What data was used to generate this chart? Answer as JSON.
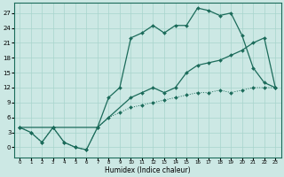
{
  "xlabel": "Humidex (Indice chaleur)",
  "background_color": "#cce8e4",
  "line_color": "#1b6b5a",
  "xlim": [
    -0.5,
    23.5
  ],
  "ylim": [
    -2,
    29
  ],
  "xticks": [
    0,
    1,
    2,
    3,
    4,
    5,
    6,
    7,
    8,
    9,
    10,
    11,
    12,
    13,
    14,
    15,
    16,
    17,
    18,
    19,
    20,
    21,
    22,
    23
  ],
  "yticks": [
    0,
    3,
    6,
    9,
    12,
    15,
    18,
    21,
    24,
    27
  ],
  "grid_color": "#a8d4cc",
  "line1_x": [
    0,
    1,
    2,
    3,
    4,
    5,
    6,
    7,
    8,
    9,
    10,
    11,
    12,
    13,
    14,
    15,
    16,
    17,
    18,
    19,
    20,
    21,
    22,
    23
  ],
  "line1_y": [
    4,
    3,
    1,
    4,
    1,
    0,
    -0.5,
    4,
    6,
    7,
    8,
    8.5,
    9,
    9.5,
    10,
    10.5,
    11,
    11,
    11.5,
    11,
    11.5,
    12,
    12,
    12
  ],
  "line2_x": [
    0,
    1,
    2,
    3,
    4,
    5,
    6,
    7,
    8,
    9,
    10,
    11,
    12,
    13,
    14,
    15,
    16,
    17,
    18,
    19,
    20,
    21,
    22,
    23
  ],
  "line2_y": [
    4,
    3,
    1,
    4,
    1,
    0,
    -0.5,
    4,
    10,
    12,
    22,
    23,
    24.5,
    23,
    24.5,
    24.5,
    28,
    27.5,
    26.5,
    27,
    22.5,
    16,
    13,
    12
  ],
  "line3_x": [
    0,
    3,
    7,
    10,
    11,
    12,
    13,
    14,
    15,
    16,
    17,
    18,
    19,
    20,
    21,
    22,
    23
  ],
  "line3_y": [
    4,
    4,
    4,
    10,
    11,
    12,
    11,
    12,
    15,
    16.5,
    17,
    17.5,
    18.5,
    19.5,
    21,
    22,
    12
  ]
}
